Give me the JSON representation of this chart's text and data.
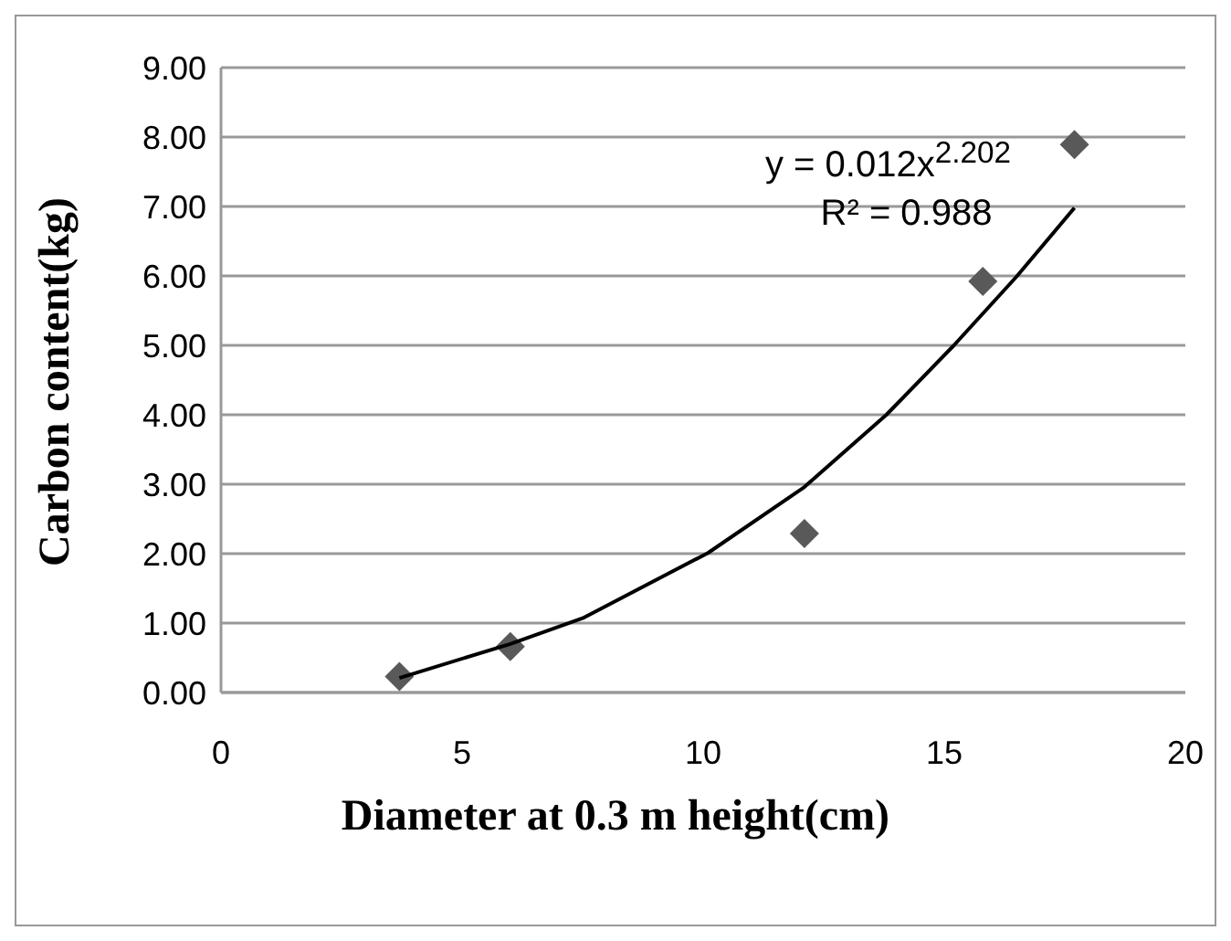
{
  "chart_data": {
    "type": "scatter",
    "xlabel": "Diameter at 0.3 m height(cm)",
    "ylabel": "Carbon content(kg)",
    "annotations": [
      "y = 0.012x$^{2.202}$",
      "R² = 0.988"
    ],
    "series": [
      {
        "color": "#595959",
        "marker": "diamond",
        "x": [
          3.7,
          6.0,
          12.1,
          15.8,
          17.7
        ],
        "values": [
          0.23,
          0.66,
          2.29,
          5.92,
          7.89
        ]
      },
      {
        "type": "line",
        "color": "#000000",
        "marker": "none",
        "line_style": "solid",
        "x": [
          3.7,
          6.0,
          7.5,
          10.1,
          12.1,
          13.8,
          15.2,
          16.5,
          17.7
        ],
        "values": [
          0.21,
          0.7,
          1.07,
          2.01,
          2.96,
          4.0,
          5.0,
          5.99,
          6.98
        ]
      }
    ],
    "xlim": [
      0,
      20
    ],
    "xticks": [
      0,
      5,
      10,
      15,
      20
    ],
    "ylim": [
      0,
      9
    ],
    "yticks": [
      {
        "value": 0,
        "label": "0.00"
      },
      {
        "value": 1,
        "label": "1.00"
      },
      {
        "value": 2,
        "label": "2.00"
      },
      {
        "value": 3,
        "label": "3.00"
      },
      {
        "value": 4,
        "label": "4.00"
      },
      {
        "value": 5,
        "label": "5.00"
      },
      {
        "value": 6,
        "label": "6.00"
      },
      {
        "value": 7,
        "label": "7.00"
      },
      {
        "value": 8,
        "label": "8.00"
      },
      {
        "value": 9,
        "label": "9.00"
      }
    ],
    "grid": "y"
  }
}
